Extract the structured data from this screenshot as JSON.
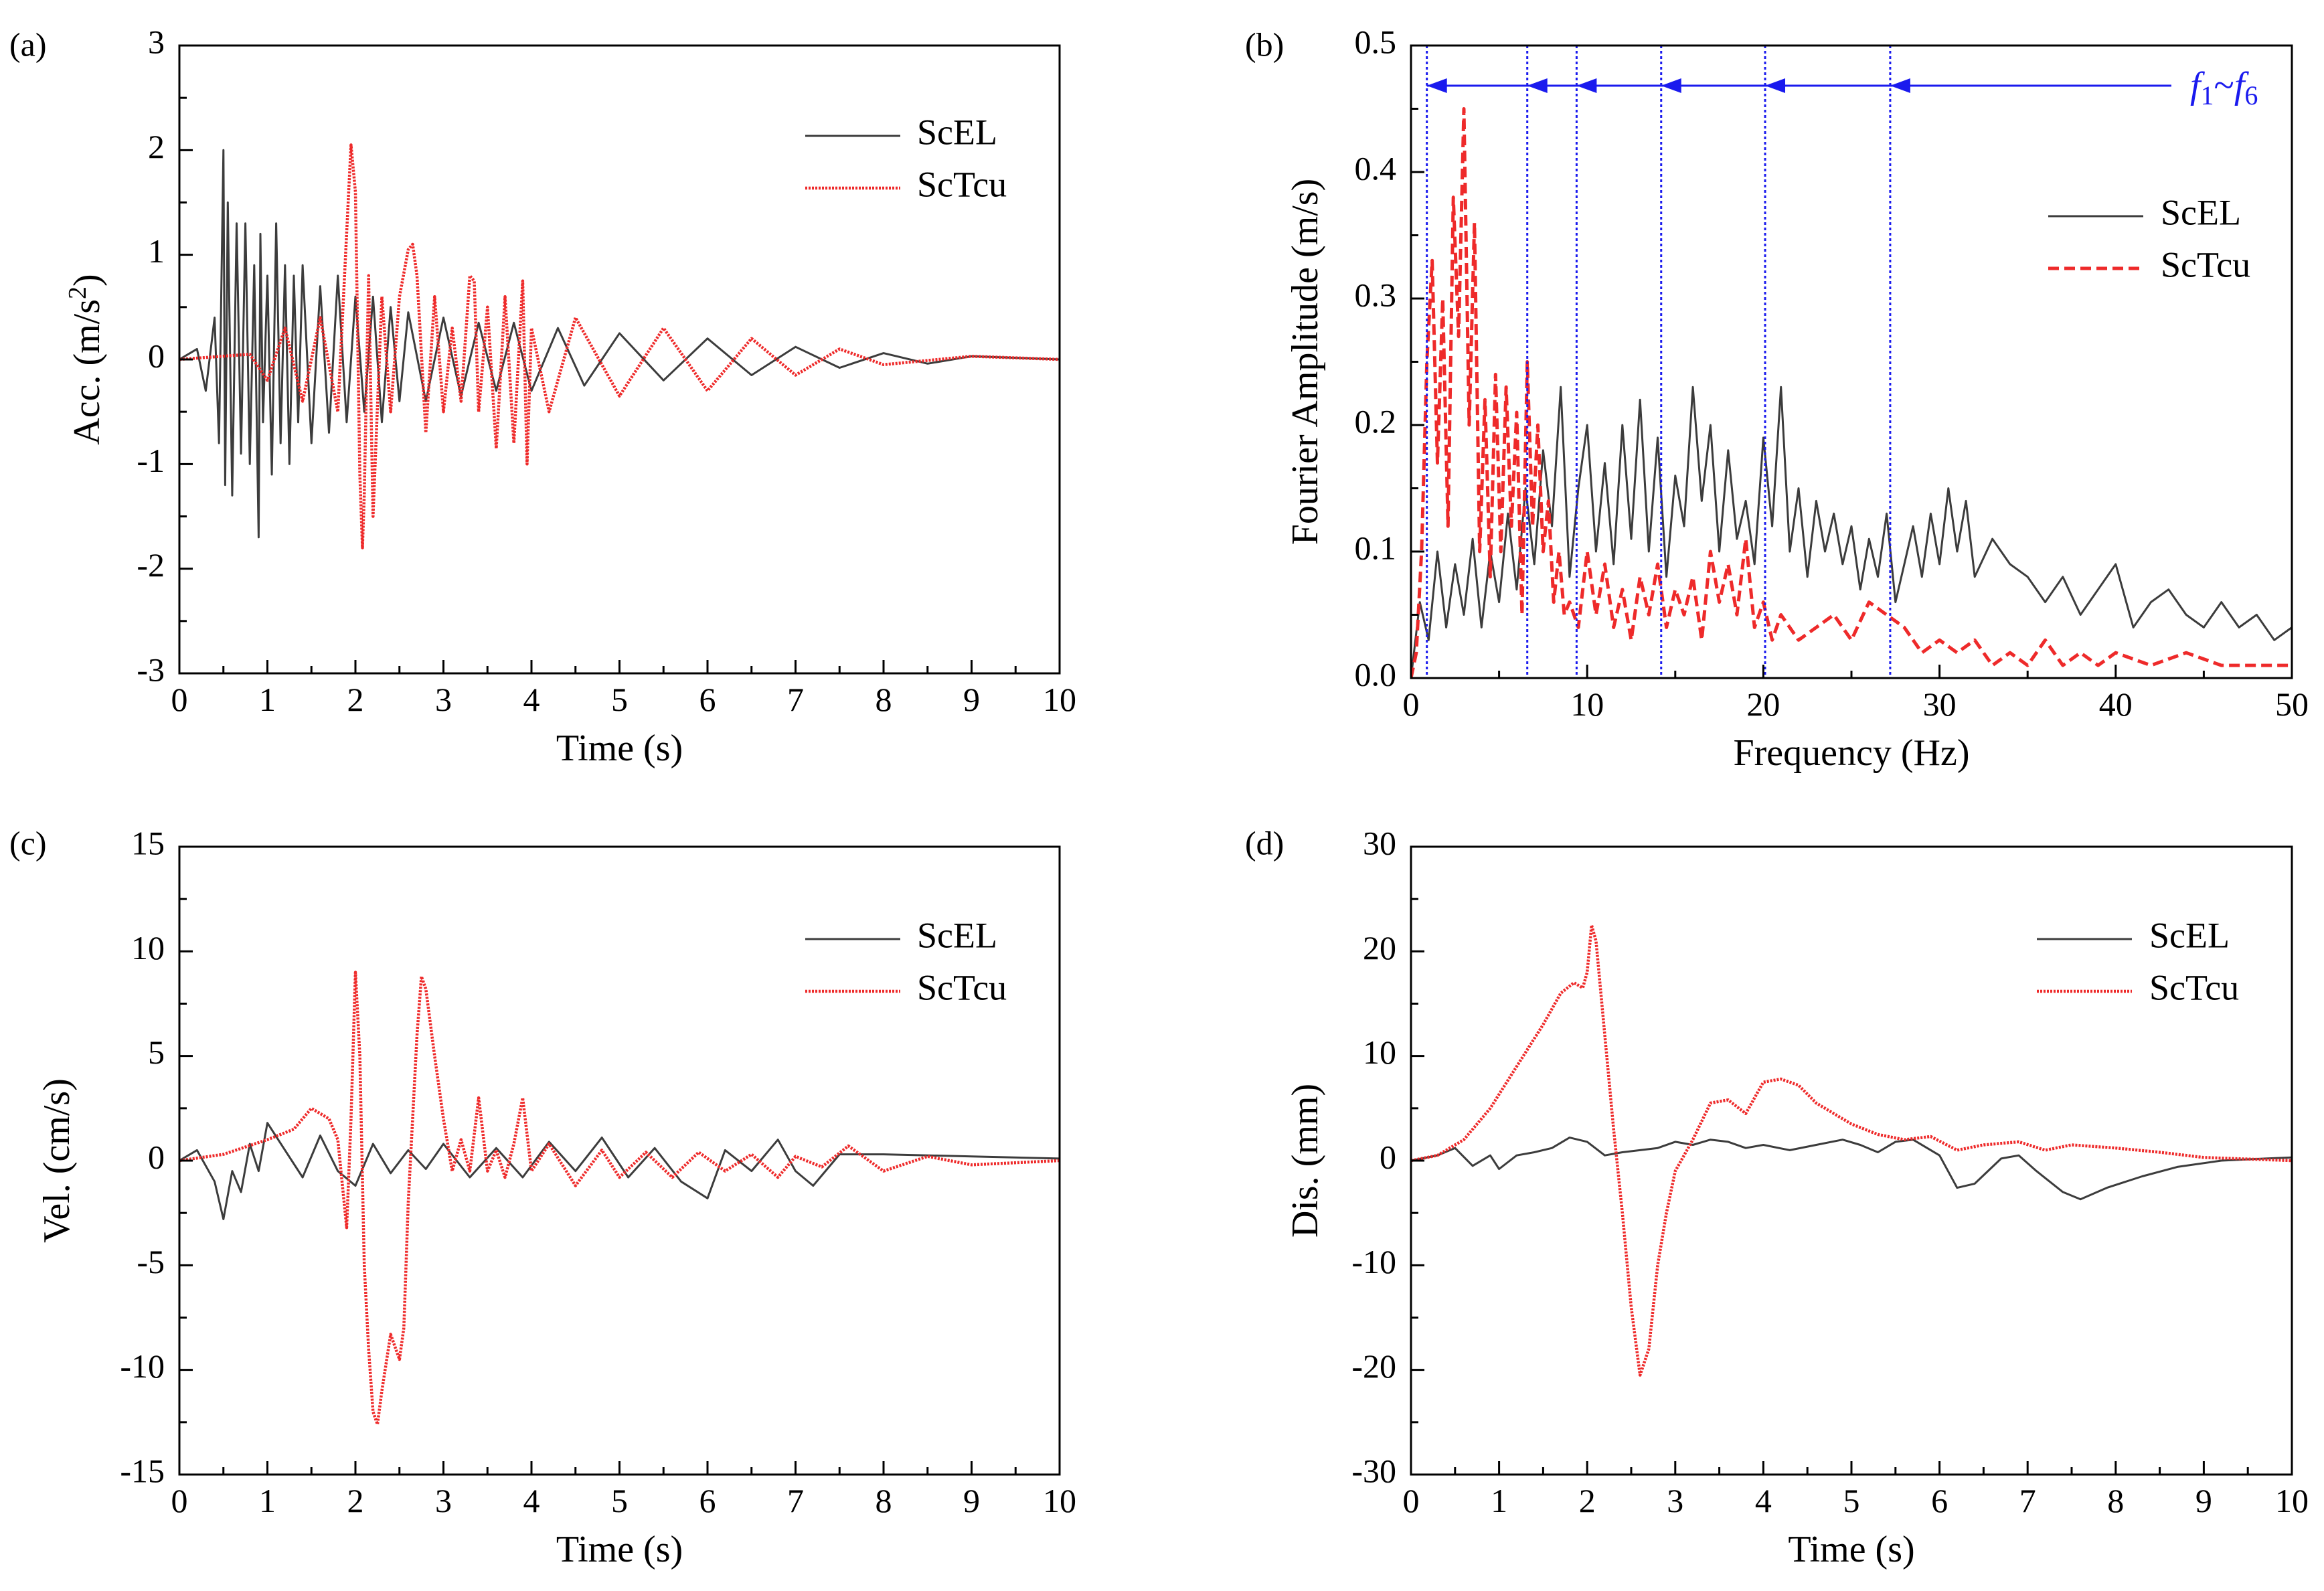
{
  "colors": {
    "ScEL": "#3c3c3c",
    "ScTcu": "#ee2a2a",
    "marker": "#1a1aee"
  },
  "chart_data": [
    {
      "id": "a",
      "type": "line",
      "label": "(a)",
      "xlabel": "Time (s)",
      "ylabel": "Acc. (m/s2)",
      "ylabel_main": "Acc. (m/s",
      "ylabel_sup": "2",
      "ylabel_end": ")",
      "xlim": [
        0,
        10
      ],
      "ylim": [
        -3,
        3
      ],
      "xticks": [
        0,
        1,
        2,
        3,
        4,
        5,
        6,
        7,
        8,
        9,
        10
      ],
      "yticks": [
        -3,
        -2,
        -1,
        0,
        1,
        2,
        3
      ],
      "legend": [
        "ScEL",
        "ScTcu"
      ],
      "legend_position": "top-right",
      "series": [
        {
          "name": "ScEL",
          "style": "solid",
          "x": [
            0,
            0.2,
            0.3,
            0.4,
            0.45,
            0.5,
            0.52,
            0.55,
            0.6,
            0.65,
            0.7,
            0.75,
            0.8,
            0.85,
            0.9,
            0.92,
            0.95,
            1.0,
            1.05,
            1.1,
            1.15,
            1.2,
            1.25,
            1.3,
            1.35,
            1.4,
            1.5,
            1.6,
            1.7,
            1.8,
            1.9,
            2.0,
            2.1,
            2.2,
            2.3,
            2.4,
            2.5,
            2.6,
            2.8,
            3.0,
            3.2,
            3.4,
            3.6,
            3.8,
            4.0,
            4.3,
            4.6,
            5.0,
            5.5,
            6.0,
            6.5,
            7.0,
            7.5,
            8.0,
            8.5,
            9.0,
            10.0
          ],
          "y": [
            0,
            0.1,
            -0.3,
            0.4,
            -0.8,
            2.0,
            -1.2,
            1.5,
            -1.3,
            1.3,
            -0.9,
            1.3,
            -1.0,
            0.9,
            -1.7,
            1.2,
            -0.6,
            0.8,
            -1.1,
            1.3,
            -0.8,
            0.9,
            -1.0,
            0.8,
            -0.6,
            0.9,
            -0.8,
            0.7,
            -0.7,
            0.8,
            -0.6,
            0.6,
            -0.5,
            0.6,
            -0.6,
            0.5,
            -0.4,
            0.45,
            -0.4,
            0.4,
            -0.35,
            0.35,
            -0.3,
            0.35,
            -0.3,
            0.3,
            -0.25,
            0.25,
            -0.2,
            0.2,
            -0.15,
            0.12,
            -0.08,
            0.06,
            -0.04,
            0.03,
            0
          ]
        },
        {
          "name": "ScTcu",
          "style": "dotted",
          "x": [
            0,
            0.8,
            1.0,
            1.2,
            1.4,
            1.6,
            1.8,
            1.95,
            2.0,
            2.05,
            2.08,
            2.1,
            2.15,
            2.2,
            2.3,
            2.4,
            2.5,
            2.6,
            2.65,
            2.7,
            2.8,
            2.9,
            3.0,
            3.1,
            3.2,
            3.3,
            3.35,
            3.4,
            3.5,
            3.6,
            3.7,
            3.8,
            3.9,
            3.95,
            4.0,
            4.2,
            4.5,
            5.0,
            5.5,
            6.0,
            6.5,
            7.0,
            7.5,
            8.0,
            9.0,
            10.0
          ],
          "y": [
            0,
            0.05,
            -0.2,
            0.3,
            -0.4,
            0.4,
            -0.5,
            2.05,
            1.6,
            -1.1,
            -1.8,
            -1.3,
            0.8,
            -1.5,
            0.6,
            -0.5,
            0.6,
            1.05,
            1.1,
            0.8,
            -0.7,
            0.6,
            -0.5,
            0.3,
            -0.4,
            0.8,
            0.75,
            -0.5,
            0.5,
            -0.85,
            0.6,
            -0.8,
            0.75,
            -1.0,
            0.3,
            -0.5,
            0.4,
            -0.35,
            0.3,
            -0.3,
            0.2,
            -0.15,
            0.1,
            -0.05,
            0.03,
            0
          ]
        }
      ]
    },
    {
      "id": "b",
      "type": "line",
      "label": "(b)",
      "xlabel": "Frequency (Hz)",
      "ylabel": "Fourier Amplitude (m/s)",
      "xlim": [
        0,
        50
      ],
      "ylim": [
        0,
        0.5
      ],
      "xticks": [
        0,
        10,
        20,
        30,
        40,
        50
      ],
      "yticks": [
        0.0,
        0.1,
        0.2,
        0.3,
        0.4,
        0.5
      ],
      "ytick_labels": [
        "0.0",
        "0.1",
        "0.2",
        "0.3",
        "0.4",
        "0.5"
      ],
      "legend": [
        "ScEL",
        "ScTcu"
      ],
      "legend_position": "right",
      "annotation": {
        "text": "f1~f6",
        "main1": "f",
        "sub1": "1",
        "tilde": "~",
        "main2": "f",
        "sub2": "6"
      },
      "markers_hz": [
        0.9,
        6.6,
        9.4,
        14.2,
        20.1,
        27.2
      ],
      "series": [
        {
          "name": "ScEL",
          "style": "solid",
          "x": [
            0,
            0.5,
            1,
            1.5,
            2,
            2.5,
            3,
            3.5,
            4,
            4.5,
            5,
            5.5,
            6,
            6.5,
            7,
            7.5,
            8,
            8.5,
            9,
            9.5,
            10,
            10.5,
            11,
            11.5,
            12,
            12.5,
            13,
            13.5,
            14,
            14.5,
            15,
            15.5,
            16,
            16.5,
            17,
            17.5,
            18,
            18.5,
            19,
            19.5,
            20,
            20.5,
            21,
            21.5,
            22,
            22.5,
            23,
            23.5,
            24,
            24.5,
            25,
            25.5,
            26,
            26.5,
            27,
            27.5,
            28,
            28.5,
            29,
            29.5,
            30,
            30.5,
            31,
            31.5,
            32,
            33,
            34,
            35,
            36,
            37,
            38,
            39,
            40,
            41,
            42,
            43,
            44,
            45,
            46,
            47,
            48,
            49,
            50
          ],
          "y": [
            0,
            0.06,
            0.03,
            0.1,
            0.04,
            0.09,
            0.05,
            0.11,
            0.04,
            0.1,
            0.06,
            0.13,
            0.07,
            0.15,
            0.09,
            0.18,
            0.12,
            0.23,
            0.08,
            0.15,
            0.2,
            0.1,
            0.17,
            0.09,
            0.2,
            0.11,
            0.22,
            0.1,
            0.19,
            0.08,
            0.16,
            0.12,
            0.23,
            0.14,
            0.2,
            0.1,
            0.18,
            0.11,
            0.14,
            0.09,
            0.19,
            0.12,
            0.23,
            0.1,
            0.15,
            0.08,
            0.14,
            0.1,
            0.13,
            0.09,
            0.12,
            0.07,
            0.11,
            0.08,
            0.13,
            0.06,
            0.09,
            0.12,
            0.08,
            0.13,
            0.09,
            0.15,
            0.1,
            0.14,
            0.08,
            0.11,
            0.09,
            0.08,
            0.06,
            0.08,
            0.05,
            0.07,
            0.09,
            0.04,
            0.06,
            0.07,
            0.05,
            0.04,
            0.06,
            0.04,
            0.05,
            0.03,
            0.04
          ]
        },
        {
          "name": "ScTcu",
          "style": "dashed",
          "x": [
            0,
            0.3,
            0.6,
            0.9,
            1.2,
            1.5,
            1.8,
            2.1,
            2.4,
            2.7,
            3.0,
            3.3,
            3.6,
            3.9,
            4.2,
            4.5,
            4.8,
            5.1,
            5.4,
            5.7,
            6.0,
            6.3,
            6.6,
            6.9,
            7.2,
            7.5,
            7.8,
            8.1,
            8.4,
            8.7,
            9.0,
            9.5,
            10,
            10.5,
            11,
            11.5,
            12,
            12.5,
            13,
            13.5,
            14,
            14.5,
            15,
            15.5,
            16,
            16.5,
            17,
            17.5,
            18,
            18.5,
            19,
            19.5,
            20,
            20.5,
            21,
            22,
            23,
            24,
            25,
            26,
            27,
            28,
            29,
            30,
            31,
            32,
            33,
            34,
            35,
            36,
            37,
            38,
            39,
            40,
            42,
            44,
            46,
            48,
            50
          ],
          "y": [
            0,
            0.02,
            0.1,
            0.25,
            0.33,
            0.17,
            0.3,
            0.12,
            0.38,
            0.27,
            0.45,
            0.2,
            0.36,
            0.1,
            0.22,
            0.08,
            0.24,
            0.1,
            0.23,
            0.12,
            0.21,
            0.05,
            0.25,
            0.12,
            0.2,
            0.1,
            0.14,
            0.06,
            0.1,
            0.05,
            0.06,
            0.04,
            0.1,
            0.05,
            0.09,
            0.04,
            0.07,
            0.03,
            0.08,
            0.05,
            0.09,
            0.04,
            0.07,
            0.05,
            0.08,
            0.03,
            0.1,
            0.06,
            0.09,
            0.05,
            0.11,
            0.04,
            0.06,
            0.03,
            0.05,
            0.03,
            0.04,
            0.05,
            0.03,
            0.06,
            0.05,
            0.04,
            0.02,
            0.03,
            0.02,
            0.03,
            0.01,
            0.02,
            0.01,
            0.03,
            0.01,
            0.02,
            0.01,
            0.02,
            0.01,
            0.02,
            0.01,
            0.01,
            0.01
          ]
        }
      ]
    },
    {
      "id": "c",
      "type": "line",
      "label": "(c)",
      "xlabel": "Time (s)",
      "ylabel": "Vel. (cm/s)",
      "xlim": [
        0,
        10
      ],
      "ylim": [
        -15,
        15
      ],
      "xticks": [
        0,
        1,
        2,
        3,
        4,
        5,
        6,
        7,
        8,
        9,
        10
      ],
      "yticks": [
        -15,
        -10,
        -5,
        0,
        5,
        10,
        15
      ],
      "legend": [
        "ScEL",
        "ScTcu"
      ],
      "legend_position": "top-right",
      "series": [
        {
          "name": "ScEL",
          "style": "solid",
          "x": [
            0,
            0.2,
            0.4,
            0.5,
            0.6,
            0.7,
            0.8,
            0.9,
            1.0,
            1.2,
            1.4,
            1.6,
            1.8,
            2.0,
            2.2,
            2.4,
            2.6,
            2.8,
            3.0,
            3.3,
            3.6,
            3.9,
            4.2,
            4.5,
            4.8,
            5.1,
            5.4,
            5.7,
            6.0,
            6.2,
            6.5,
            6.8,
            7.0,
            7.2,
            7.5,
            7.7,
            8.0,
            9.0,
            10.0
          ],
          "y": [
            0,
            0.5,
            -1.0,
            -2.8,
            -0.5,
            -1.5,
            0.8,
            -0.5,
            1.8,
            0.5,
            -0.8,
            1.2,
            -0.5,
            -1.2,
            0.8,
            -0.6,
            0.5,
            -0.4,
            0.8,
            -0.8,
            0.6,
            -0.8,
            0.9,
            -0.5,
            1.1,
            -0.8,
            0.6,
            -1.0,
            -1.8,
            0.5,
            -0.5,
            1.0,
            -0.5,
            -1.2,
            0.3,
            0.3,
            0.3,
            0.2,
            0.1
          ]
        },
        {
          "name": "ScTcu",
          "style": "dotted",
          "x": [
            0,
            0.5,
            1.0,
            1.3,
            1.5,
            1.7,
            1.8,
            1.9,
            1.95,
            2.0,
            2.05,
            2.1,
            2.15,
            2.2,
            2.25,
            2.3,
            2.4,
            2.5,
            2.55,
            2.6,
            2.7,
            2.75,
            2.8,
            2.9,
            3.0,
            3.1,
            3.2,
            3.3,
            3.4,
            3.5,
            3.6,
            3.7,
            3.8,
            3.9,
            4.0,
            4.2,
            4.5,
            4.8,
            5.0,
            5.3,
            5.6,
            5.9,
            6.2,
            6.5,
            6.8,
            7.0,
            7.3,
            7.6,
            8.0,
            8.5,
            9.0,
            10.0
          ],
          "y": [
            0,
            0.3,
            1.0,
            1.5,
            2.5,
            2.0,
            1.0,
            -3.2,
            2.0,
            9.0,
            5.0,
            -5.0,
            -9.0,
            -12.0,
            -12.6,
            -11.0,
            -8.3,
            -9.5,
            -8.0,
            -2.0,
            6.0,
            8.8,
            8.2,
            5.0,
            2.0,
            -0.5,
            1.0,
            -0.5,
            3.0,
            -0.5,
            0.5,
            -0.8,
            0.8,
            3.0,
            -0.5,
            0.8,
            -1.2,
            0.5,
            -0.8,
            0.4,
            -0.8,
            0.4,
            -0.5,
            0.3,
            -0.8,
            0.2,
            -0.3,
            0.7,
            -0.5,
            0.2,
            -0.2,
            0
          ]
        }
      ]
    },
    {
      "id": "d",
      "type": "line",
      "label": "(d)",
      "xlabel": "Time (s)",
      "ylabel": "Dis. (mm)",
      "xlim": [
        0,
        10
      ],
      "ylim": [
        -30,
        30
      ],
      "xticks": [
        0,
        1,
        2,
        3,
        4,
        5,
        6,
        7,
        8,
        9,
        10
      ],
      "yticks": [
        -30,
        -20,
        -10,
        0,
        10,
        20,
        30
      ],
      "legend": [
        "ScEL",
        "ScTcu"
      ],
      "legend_position": "top-right",
      "series": [
        {
          "name": "ScEL",
          "style": "solid",
          "x": [
            0,
            0.3,
            0.5,
            0.7,
            0.9,
            1.0,
            1.2,
            1.4,
            1.6,
            1.8,
            2.0,
            2.2,
            2.4,
            2.6,
            2.8,
            3.0,
            3.2,
            3.4,
            3.6,
            3.8,
            4.0,
            4.3,
            4.6,
            4.9,
            5.1,
            5.3,
            5.5,
            5.7,
            6.0,
            6.2,
            6.4,
            6.7,
            6.9,
            7.1,
            7.4,
            7.6,
            7.9,
            8.3,
            8.7,
            9.2,
            9.7,
            10.0
          ],
          "y": [
            0,
            0.5,
            1.2,
            -0.5,
            0.5,
            -0.8,
            0.5,
            0.8,
            1.2,
            2.2,
            1.8,
            0.5,
            0.8,
            1.0,
            1.2,
            1.8,
            1.5,
            2.0,
            1.8,
            1.2,
            1.5,
            1.0,
            1.5,
            2.0,
            1.5,
            0.8,
            1.8,
            2.0,
            0.5,
            -2.6,
            -2.2,
            0.2,
            0.5,
            -1.0,
            -3.0,
            -3.7,
            -2.6,
            -1.5,
            -0.6,
            0,
            0.2,
            0.3
          ]
        },
        {
          "name": "ScTcu",
          "style": "dotted",
          "x": [
            0,
            0.3,
            0.6,
            0.9,
            1.2,
            1.5,
            1.7,
            1.85,
            1.95,
            2.0,
            2.05,
            2.1,
            2.2,
            2.3,
            2.4,
            2.5,
            2.6,
            2.7,
            2.8,
            2.9,
            3.0,
            3.2,
            3.4,
            3.6,
            3.8,
            4.0,
            4.2,
            4.4,
            4.6,
            4.8,
            5.0,
            5.3,
            5.6,
            5.9,
            6.2,
            6.5,
            6.9,
            7.2,
            7.5,
            8.0,
            8.5,
            9.0,
            10.0
          ],
          "y": [
            0,
            0.5,
            2.0,
            5.0,
            9.0,
            13.0,
            16.0,
            17.0,
            16.5,
            18.0,
            22.5,
            21.0,
            12.0,
            3.0,
            -5.0,
            -14.0,
            -20.5,
            -18.0,
            -10.0,
            -5.0,
            -1.0,
            2.0,
            5.5,
            5.8,
            4.5,
            7.5,
            7.8,
            7.2,
            5.5,
            4.5,
            3.5,
            2.5,
            2.0,
            2.3,
            1.0,
            1.5,
            1.8,
            1.0,
            1.5,
            1.2,
            0.8,
            0.3,
            0
          ]
        }
      ]
    }
  ]
}
